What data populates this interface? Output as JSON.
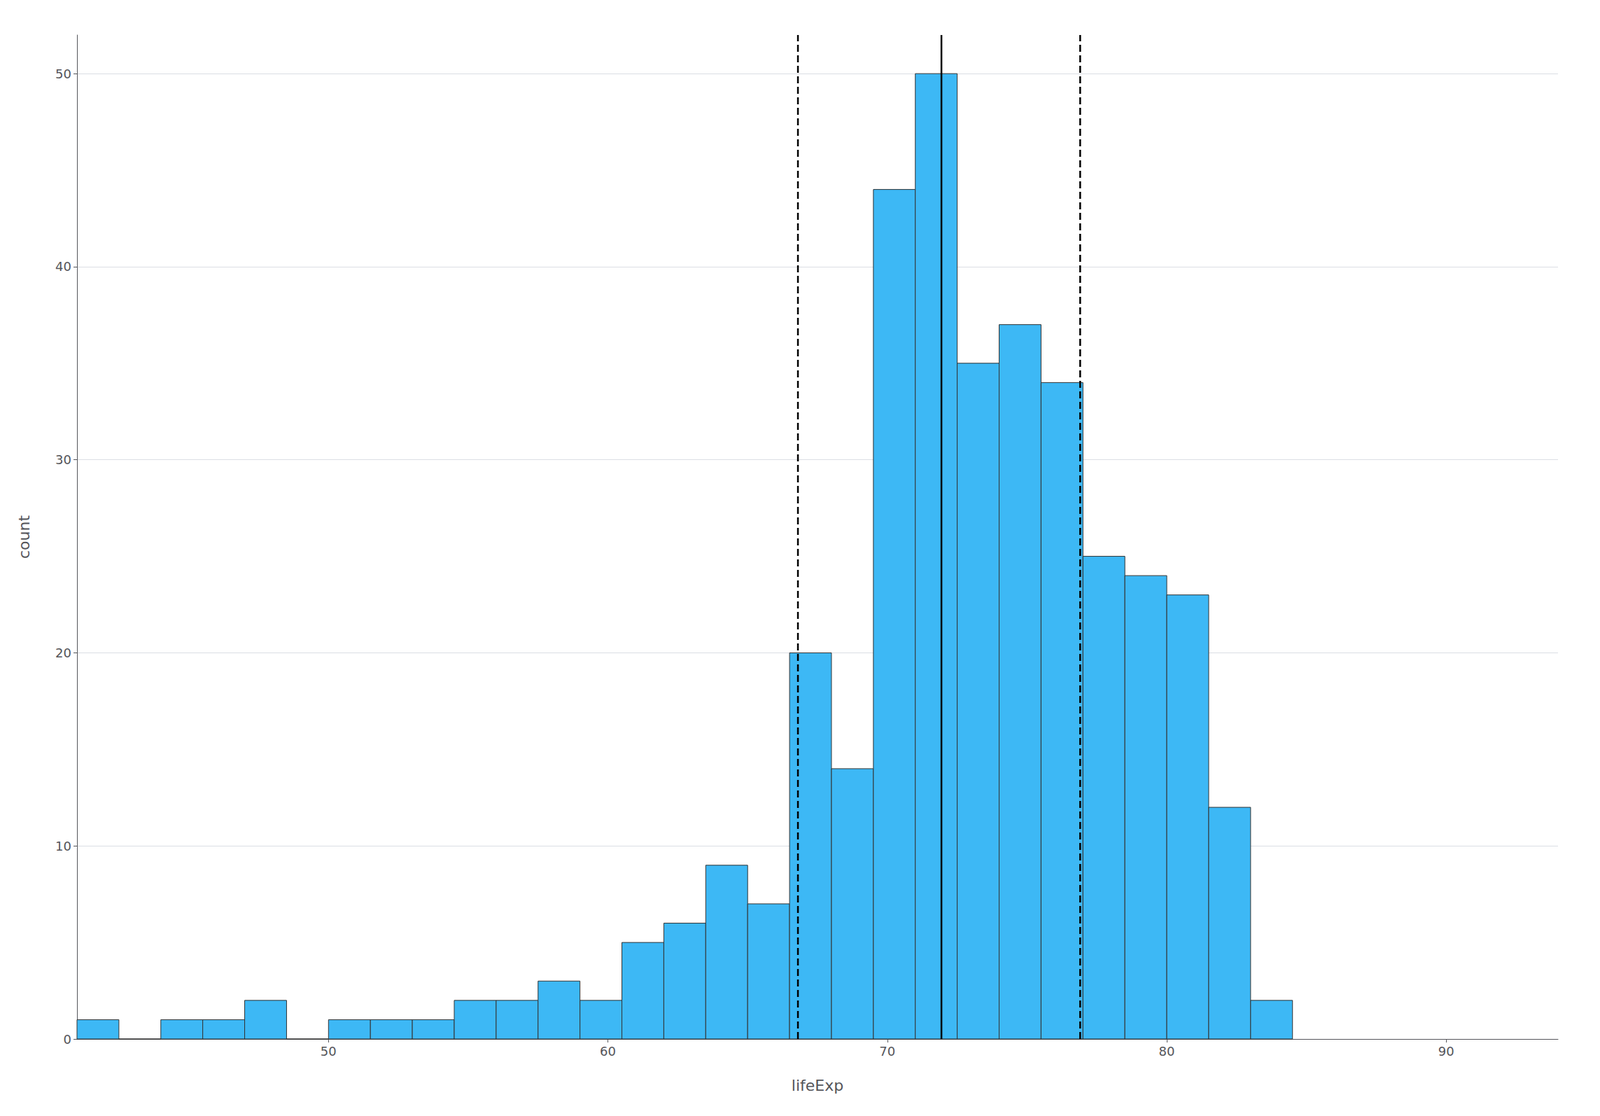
{
  "chart_data": {
    "type": "histogram",
    "xlabel": "lifeExp",
    "ylabel": "count",
    "color": "#3db8f5",
    "bins": [
      41.0,
      42.5,
      44.0,
      45.5,
      47.0,
      48.5,
      50.0,
      51.5,
      53.0,
      54.5,
      56.0,
      57.5,
      59.0,
      60.5,
      62.0,
      63.5,
      65.0,
      66.5,
      68.0,
      69.5,
      71.0,
      72.5,
      74.0,
      75.5,
      77.0,
      78.5,
      80.0,
      81.5,
      83.0,
      84.5
    ],
    "counts": [
      1,
      0,
      1,
      1,
      2,
      0,
      1,
      1,
      1,
      2,
      2,
      3,
      2,
      5,
      6,
      9,
      7,
      20,
      14,
      44,
      50,
      35,
      37,
      34,
      25,
      24,
      23,
      12,
      2
    ],
    "vlines": [
      {
        "x": 71.9355,
        "line_style": "solid"
      },
      {
        "x": 66.8,
        "line_style": "dashed"
      },
      {
        "x": 76.9,
        "line_style": "dashed"
      }
    ],
    "xlim": [
      41,
      94
    ],
    "xticks": [
      50,
      60,
      70,
      80,
      90
    ],
    "ylim": [
      0,
      52
    ],
    "yticks": [
      0,
      10,
      20,
      30,
      40,
      50
    ],
    "grid": "y"
  }
}
